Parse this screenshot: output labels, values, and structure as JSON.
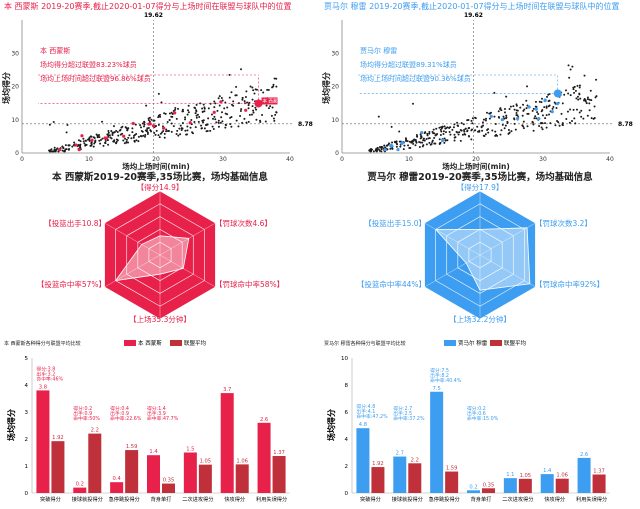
{
  "players": [
    {
      "id": "left",
      "color": "#e8214a",
      "light": "#f9cfd8",
      "scatter_title": "本 西蒙斯 2019-20赛季,截止2020-01-07得分与上场时间在联盟与球队中的位置",
      "scatter_notes": [
        "本 西蒙斯",
        "场均得分超过联盟83.23%球员",
        "场均上场时间超过联盟96.86%球员"
      ],
      "point_label": "本 西蒙斯",
      "ref_values": [
        "19.62",
        "8.78"
      ],
      "radar_title": "本 西蒙斯2019-20赛季,35场比赛，场均基础信息",
      "radar_labels": [
        "【得分14.9】",
        "【罚球次数4.6】",
        "【罚球命中率58%】",
        "【上场35.3分钟】",
        "【投篮命中率57%】",
        "【投篮出手10.8】"
      ],
      "bar_title": "本 西蒙斯各种得分与联盟平均比较",
      "legend": [
        "本 西蒙斯",
        "联盟平均"
      ],
      "bar_annotations": [
        [
          "得分:3.8",
          "出手:3.2",
          "命中率:46%"
        ],
        [
          "得分:0.2",
          "出手:0.9",
          "命中率:50%"
        ],
        [
          "得分:0.4",
          "出手:0.9",
          "命中率:22.6%"
        ],
        [
          "得分:1.4",
          "出手:3.9",
          "命中率:47.7%"
        ]
      ]
    },
    {
      "id": "right",
      "color": "#3d9df0",
      "light": "#cfe6fb",
      "scatter_title": "贾马尔 穆雷 2019-20赛季,截止2020-01-07得分与上场时间在联盟与球队中的位置",
      "scatter_notes": [
        "贾马尔 穆雷",
        "场均得分超过联盟89.31%球员",
        "场均上场时间超过联盟90.36%球员"
      ],
      "point_label": "",
      "ref_values": [
        "19.62",
        "8.78"
      ],
      "radar_title": "贾马尔 穆雷2019-20赛季,35场比赛，场均基础信息",
      "radar_labels": [
        "【得分17.9】",
        "【罚球次数3.2】",
        "【罚球命中率92%】",
        "【上场32.2分钟】",
        "【投篮命中率44%】",
        "【投篮出手15.0】"
      ],
      "bar_title": "贾马尔 穆雷各种得分与联盟平均比较",
      "legend": [
        "贾马尔 穆雷",
        "联盟平均"
      ],
      "bar_annotations": [
        [
          "得分:4.8",
          "出手:4.1",
          "命中率:47.2%"
        ],
        [
          "得分:2.7",
          "出手:2.5",
          "命中率:37.2%"
        ],
        [
          "得分:7.5",
          "出手:8.2",
          "命中率:40.4%"
        ],
        [
          "得分:0.2",
          "出手:0.6",
          "命中率:15.0%"
        ]
      ]
    }
  ],
  "chart_data": [
    {
      "type": "scatter",
      "id": "left-scatter",
      "xlabel": "场均上场时间(min)",
      "ylabel": "场均得分",
      "xlim": [
        0,
        40
      ],
      "ylim": [
        0,
        40
      ],
      "xticks": [
        0,
        10,
        20,
        30,
        40
      ],
      "yticks": [
        0,
        10,
        20,
        30
      ],
      "ref_lines": {
        "x": 19.62,
        "y": 8.78
      },
      "highlight": {
        "x": 35.3,
        "y": 14.9
      }
    },
    {
      "type": "scatter",
      "id": "right-scatter",
      "xlabel": "场均上场时间(min)",
      "ylabel": "场均得分",
      "xlim": [
        0,
        40
      ],
      "ylim": [
        0,
        40
      ],
      "xticks": [
        0,
        10,
        20,
        30,
        40
      ],
      "yticks": [
        0,
        10,
        20,
        30
      ],
      "ref_lines": {
        "x": 19.62,
        "y": 8.78
      },
      "highlight": {
        "x": 32.2,
        "y": 17.9
      }
    },
    {
      "type": "radar",
      "id": "left-radar",
      "axes": [
        "得分",
        "罚球次数",
        "罚球命中率",
        "上场",
        "投篮命中率",
        "投篮出手"
      ],
      "values": [
        0.3,
        0.52,
        0.42,
        0.3,
        0.8,
        0.33
      ]
    },
    {
      "type": "radar",
      "id": "right-radar",
      "axes": [
        "得分",
        "罚球次数",
        "罚球命中率",
        "上场",
        "投篮命中率",
        "投篮出手"
      ],
      "values": [
        0.4,
        0.85,
        0.9,
        0.55,
        0.25,
        0.8
      ]
    },
    {
      "type": "bar",
      "id": "left-bars",
      "ylabel": "场均得分",
      "ylim": [
        0,
        5
      ],
      "yticks": [
        0,
        1,
        2,
        3,
        4,
        5
      ],
      "categories": [
        "突破得分",
        "接球就投得分",
        "急停跳投得分",
        "背身单打",
        "二次进攻得分",
        "快攻得分",
        "利用失误得分"
      ],
      "series": [
        {
          "name": "本 西蒙斯",
          "values": [
            3.8,
            0.2,
            0.4,
            1.4,
            1.5,
            3.7,
            2.6
          ]
        },
        {
          "name": "联盟平均",
          "values": [
            1.92,
            2.2,
            1.59,
            0.35,
            1.05,
            1.06,
            1.37
          ]
        }
      ]
    },
    {
      "type": "bar",
      "id": "right-bars",
      "ylabel": "场均得分",
      "ylim": [
        0,
        10
      ],
      "yticks": [
        0,
        2,
        4,
        6,
        8,
        10
      ],
      "categories": [
        "突破得分",
        "接球就投得分",
        "急停跳投得分",
        "背身单打",
        "二次进攻得分",
        "快攻得分",
        "利用失误得分"
      ],
      "series": [
        {
          "name": "贾马尔 穆雷",
          "values": [
            4.8,
            2.7,
            7.5,
            0.2,
            1.1,
            1.4,
            2.6
          ]
        },
        {
          "name": "联盟平均",
          "values": [
            1.92,
            2.2,
            1.59,
            0.35,
            1.05,
            1.06,
            1.37
          ]
        }
      ]
    }
  ]
}
